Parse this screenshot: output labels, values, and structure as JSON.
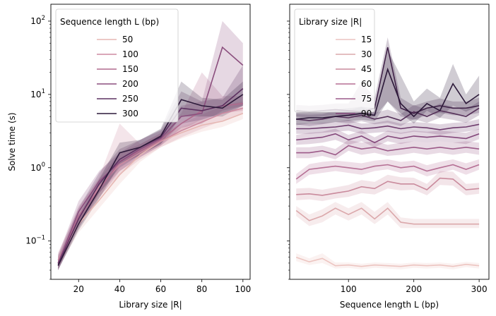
{
  "chart_data": [
    {
      "type": "line",
      "xlabel": "Library size |R|",
      "ylabel": "Solve time (s)",
      "yscale": "log",
      "xlim": [
        6.5,
        103.5
      ],
      "ylim": [
        0.03,
        170
      ],
      "x_ticks": [
        20,
        40,
        60,
        80,
        100
      ],
      "y_ticks": [
        {
          "value": 0.1,
          "base": "10",
          "exp": "−1"
        },
        {
          "value": 1,
          "base": "10",
          "exp": "0"
        },
        {
          "value": 10,
          "base": "10",
          "exp": "1"
        },
        {
          "value": 100,
          "base": "10",
          "exp": "2"
        }
      ],
      "legend": {
        "title": "Sequence length L (bp)",
        "placement": "upper-left",
        "entries": [
          "50",
          "100",
          "150",
          "200",
          "250",
          "300"
        ]
      },
      "x": [
        10,
        20,
        30,
        40,
        50,
        60,
        70,
        80,
        90,
        100
      ],
      "series": [
        {
          "name": "50",
          "color": "#e6b7b3",
          "values": [
            0.05,
            0.17,
            0.36,
            0.8,
            1.5,
            2.3,
            3.0,
            3.8,
            4.3,
            5.5
          ],
          "lo": [
            0.042,
            0.13,
            0.28,
            0.6,
            1.2,
            1.9,
            2.5,
            3.1,
            3.6,
            4.6
          ],
          "hi": [
            0.062,
            0.23,
            0.48,
            1.1,
            1.9,
            2.8,
            3.6,
            4.6,
            5.2,
            6.6
          ]
        },
        {
          "name": "100",
          "color": "#cd8aa0",
          "values": [
            0.055,
            0.2,
            0.55,
            1.1,
            1.6,
            2.3,
            3.2,
            4.2,
            5.5,
            6.5
          ],
          "lo": [
            0.045,
            0.15,
            0.4,
            0.8,
            1.3,
            1.9,
            2.6,
            3.4,
            4.4,
            5.4
          ],
          "hi": [
            0.07,
            0.27,
            0.75,
            4.0,
            2.1,
            2.9,
            4.0,
            5.3,
            7.0,
            8.0
          ]
        },
        {
          "name": "150",
          "color": "#b06a8d",
          "values": [
            0.05,
            0.22,
            0.5,
            1.2,
            1.7,
            2.4,
            4.0,
            6.0,
            7.0,
            7.5
          ],
          "lo": [
            0.04,
            0.17,
            0.38,
            0.9,
            1.4,
            2.0,
            3.2,
            4.6,
            5.5,
            6.0
          ],
          "hi": [
            0.065,
            0.3,
            0.7,
            1.6,
            2.1,
            3.0,
            5.5,
            20.0,
            9.5,
            9.5
          ]
        },
        {
          "name": "200",
          "color": "#8b4f7e",
          "values": [
            0.05,
            0.25,
            0.65,
            1.2,
            1.8,
            2.5,
            5.0,
            5.5,
            44.0,
            25.0
          ],
          "lo": [
            0.04,
            0.18,
            0.45,
            0.9,
            1.4,
            2.0,
            3.5,
            4.0,
            6.0,
            7.0
          ],
          "hi": [
            0.065,
            0.35,
            0.9,
            1.6,
            2.4,
            3.2,
            7.0,
            8.0,
            100.0,
            50.0
          ]
        },
        {
          "name": "250",
          "color": "#5c3060",
          "values": [
            0.048,
            0.2,
            0.6,
            1.3,
            1.9,
            2.6,
            6.5,
            6.0,
            7.0,
            12.0
          ],
          "lo": [
            0.04,
            0.15,
            0.45,
            1.0,
            1.5,
            2.1,
            4.0,
            4.5,
            5.5,
            7.0
          ],
          "hi": [
            0.06,
            0.28,
            0.85,
            1.8,
            2.4,
            3.3,
            11.0,
            8.0,
            9.0,
            25.0
          ]
        },
        {
          "name": "300",
          "color": "#2d1a3a",
          "values": [
            0.046,
            0.17,
            0.5,
            1.6,
            1.9,
            2.7,
            8.5,
            7.0,
            6.5,
            10.0
          ],
          "lo": [
            0.04,
            0.14,
            0.38,
            1.1,
            1.5,
            2.1,
            5.0,
            5.0,
            5.0,
            7.0
          ],
          "hi": [
            0.055,
            0.22,
            0.7,
            2.2,
            2.4,
            3.4,
            15.0,
            9.0,
            8.5,
            15.0
          ]
        }
      ]
    },
    {
      "type": "line",
      "xlabel": "Sequence length L (bp)",
      "ylabel": "",
      "yscale": "log",
      "xlim": [
        10,
        315
      ],
      "ylim": [
        0.03,
        170
      ],
      "x_ticks": [
        100,
        200,
        300
      ],
      "legend": {
        "title": "Library size |R|",
        "placement": "upper-left",
        "entries": [
          "15",
          "30",
          "45",
          "60",
          "75",
          "90"
        ]
      },
      "x": [
        20,
        40,
        60,
        80,
        100,
        120,
        140,
        160,
        180,
        200,
        220,
        240,
        260,
        280,
        300
      ],
      "series": [
        {
          "name": "15",
          "color": "#ecc4c0",
          "values": [
            0.06,
            0.052,
            0.058,
            0.046,
            0.047,
            0.045,
            0.047,
            0.046,
            0.045,
            0.047,
            0.046,
            0.047,
            0.045,
            0.048,
            0.046
          ],
          "lo": [
            0.053,
            0.047,
            0.05,
            0.042,
            0.043,
            0.041,
            0.043,
            0.042,
            0.041,
            0.043,
            0.042,
            0.043,
            0.041,
            0.044,
            0.042
          ],
          "hi": [
            0.068,
            0.058,
            0.068,
            0.051,
            0.051,
            0.049,
            0.051,
            0.05,
            0.049,
            0.051,
            0.05,
            0.051,
            0.049,
            0.052,
            0.05
          ]
        },
        {
          "name": "30",
          "color": "#dba8ab",
          "values": [
            0.26,
            0.19,
            0.22,
            0.28,
            0.23,
            0.28,
            0.2,
            0.28,
            0.18,
            0.17,
            0.17,
            0.17,
            0.17,
            0.17,
            0.17
          ],
          "lo": [
            0.22,
            0.16,
            0.18,
            0.23,
            0.19,
            0.23,
            0.17,
            0.23,
            0.15,
            0.15,
            0.15,
            0.15,
            0.15,
            0.15,
            0.15
          ],
          "hi": [
            0.3,
            0.23,
            0.27,
            0.34,
            0.28,
            0.34,
            0.25,
            0.34,
            0.21,
            0.2,
            0.2,
            0.2,
            0.2,
            0.2,
            0.2
          ]
        },
        {
          "name": "45",
          "color": "#c98a9c",
          "values": [
            0.43,
            0.44,
            0.42,
            0.45,
            0.48,
            0.55,
            0.52,
            0.65,
            0.6,
            0.6,
            0.5,
            0.72,
            0.7,
            0.5,
            0.52
          ],
          "lo": [
            0.36,
            0.37,
            0.35,
            0.38,
            0.4,
            0.45,
            0.43,
            0.52,
            0.49,
            0.5,
            0.42,
            0.58,
            0.57,
            0.42,
            0.44
          ],
          "hi": [
            0.52,
            0.53,
            0.5,
            0.54,
            0.58,
            0.68,
            0.64,
            0.8,
            0.74,
            0.73,
            0.6,
            0.9,
            0.88,
            0.6,
            0.62
          ]
        },
        {
          "name": "60",
          "color": "#b56f94",
          "values": [
            0.7,
            0.95,
            1.0,
            1.05,
            1.0,
            0.95,
            1.05,
            1.1,
            1.0,
            1.05,
            0.9,
            1.0,
            1.1,
            0.95,
            1.1
          ],
          "lo": [
            0.6,
            0.8,
            0.85,
            0.9,
            0.85,
            0.8,
            0.9,
            0.95,
            0.85,
            0.9,
            0.76,
            0.85,
            0.94,
            0.8,
            0.94
          ],
          "hi": [
            0.82,
            1.12,
            1.2,
            1.25,
            1.2,
            1.15,
            1.25,
            1.3,
            1.2,
            1.25,
            1.08,
            1.2,
            1.3,
            1.15,
            1.3
          ]
        },
        {
          "name": "75",
          "color": "#9c5a88",
          "values": [
            1.6,
            1.6,
            1.7,
            1.5,
            2.0,
            1.8,
            1.9,
            1.7,
            1.8,
            1.9,
            1.8,
            1.9,
            1.8,
            1.9,
            1.8
          ],
          "lo": [
            1.35,
            1.35,
            1.45,
            1.3,
            1.7,
            1.5,
            1.6,
            1.45,
            1.5,
            1.6,
            1.5,
            1.6,
            1.5,
            1.6,
            1.5
          ],
          "hi": [
            1.9,
            1.9,
            2.0,
            1.8,
            2.4,
            2.2,
            2.3,
            2.05,
            2.2,
            2.3,
            2.2,
            2.3,
            2.2,
            2.3,
            2.2
          ]
        },
        {
          "name": "90",
          "color": "#83477a",
          "values": [
            2.4,
            2.5,
            2.6,
            2.9,
            2.4,
            2.7,
            2.2,
            2.7,
            2.5,
            2.7,
            2.6,
            2.7,
            2.6,
            2.5,
            2.9
          ],
          "lo": [
            2.05,
            2.1,
            2.2,
            2.4,
            2.05,
            2.3,
            1.9,
            2.3,
            2.1,
            2.3,
            2.2,
            2.3,
            2.2,
            2.1,
            2.45
          ],
          "hi": [
            2.8,
            3.0,
            3.1,
            3.4,
            2.8,
            3.2,
            2.6,
            3.2,
            3.0,
            3.2,
            3.1,
            3.2,
            3.1,
            3.0,
            3.4
          ]
        },
        {
          "name": "",
          "color": "#6d3a6c",
          "values": [
            3.4,
            3.4,
            3.5,
            3.6,
            3.8,
            3.4,
            3.5,
            3.7,
            3.4,
            3.6,
            3.5,
            3.3,
            3.5,
            3.6,
            3.9
          ],
          "lo": [
            2.9,
            2.9,
            3.0,
            3.1,
            3.2,
            2.9,
            3.0,
            3.1,
            2.9,
            3.1,
            3.0,
            2.8,
            3.0,
            3.1,
            3.3
          ],
          "hi": [
            4.0,
            4.0,
            4.1,
            4.2,
            4.5,
            4.0,
            4.1,
            4.4,
            4.0,
            4.2,
            4.1,
            3.9,
            4.1,
            4.2,
            4.6
          ]
        },
        {
          "name": "",
          "color": "#553059",
          "values": [
            4.6,
            4.4,
            4.6,
            5.0,
            4.8,
            5.2,
            4.6,
            5.0,
            4.4,
            5.8,
            5.0,
            6.0,
            5.5,
            5.0,
            6.5
          ],
          "lo": [
            3.9,
            3.7,
            3.9,
            4.2,
            4.0,
            4.3,
            3.9,
            4.1,
            3.7,
            4.6,
            4.1,
            4.8,
            4.5,
            4.1,
            5.2
          ],
          "hi": [
            5.4,
            5.3,
            5.4,
            6.0,
            6.0,
            6.8,
            5.6,
            6.2,
            5.4,
            7.2,
            6.2,
            7.5,
            6.8,
            6.2,
            8.0
          ]
        },
        {
          "name": "",
          "color": "#402248",
          "values": [
            6.0,
            5.8,
            6.0,
            6.2,
            6.0,
            5.8,
            6.5,
            44.0,
            6.5,
            5.5,
            6.5,
            7.0,
            6.5,
            6.5,
            7.0
          ],
          "lo": [
            5.0,
            4.8,
            5.0,
            5.2,
            5.0,
            4.8,
            5.0,
            8.0,
            5.0,
            4.5,
            5.2,
            5.6,
            5.2,
            5.2,
            5.6
          ],
          "hi": [
            7.2,
            7.0,
            7.2,
            7.5,
            7.5,
            15.0,
            9.0,
            60.0,
            9.0,
            7.0,
            8.0,
            8.8,
            8.0,
            8.0,
            9.0
          ]
        },
        {
          "name": "",
          "color": "#2b1838",
          "values": [
            4.6,
            4.8,
            4.8,
            5.0,
            5.2,
            5.5,
            5.2,
            22.0,
            7.5,
            5.0,
            7.5,
            6.0,
            14.0,
            7.5,
            10.0
          ],
          "lo": [
            3.8,
            4.0,
            4.0,
            4.2,
            4.3,
            4.5,
            4.3,
            8.0,
            5.5,
            4.0,
            6.0,
            4.8,
            7.0,
            5.8,
            7.0
          ],
          "hi": [
            5.6,
            5.8,
            5.8,
            6.2,
            6.5,
            6.8,
            6.5,
            40.0,
            18.0,
            8.0,
            12.0,
            9.0,
            26.0,
            10.0,
            18.0
          ]
        }
      ]
    }
  ]
}
